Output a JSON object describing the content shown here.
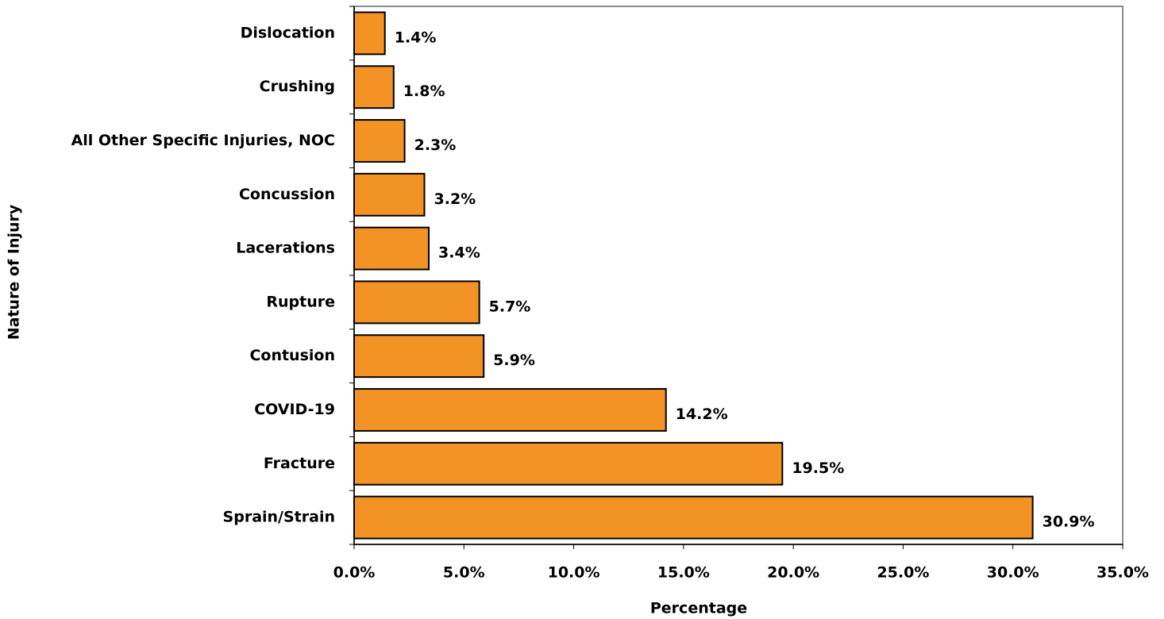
{
  "chart_data": {
    "type": "bar",
    "orientation": "horizontal",
    "xlabel": "Percentage",
    "ylabel": "Nature of Injury",
    "categories": [
      "Dislocation",
      "Crushing",
      "All Other Specific Injuries, NOC",
      "Concussion",
      "Lacerations",
      "Rupture",
      "Contusion",
      "COVID-19",
      "Fracture",
      "Sprain/Strain"
    ],
    "values": [
      1.4,
      1.8,
      2.3,
      3.2,
      3.4,
      5.7,
      5.9,
      14.2,
      19.5,
      30.9
    ],
    "value_labels": [
      "1.4%",
      "1.8%",
      "2.3%",
      "3.2%",
      "3.4%",
      "5.7%",
      "5.9%",
      "14.2%",
      "19.5%",
      "30.9%"
    ],
    "color": "#f39325",
    "xlim": [
      0,
      35
    ],
    "xticks": [
      {
        "value": 0,
        "label": "0.0%"
      },
      {
        "value": 5,
        "label": "5.0%"
      },
      {
        "value": 10,
        "label": "10.0%"
      },
      {
        "value": 15,
        "label": "15.0%"
      },
      {
        "value": 20,
        "label": "20.0%"
      },
      {
        "value": 25,
        "label": "25.0%"
      },
      {
        "value": 30,
        "label": "30.0%"
      },
      {
        "value": 35,
        "label": "35.0%"
      }
    ],
    "grid": false
  }
}
